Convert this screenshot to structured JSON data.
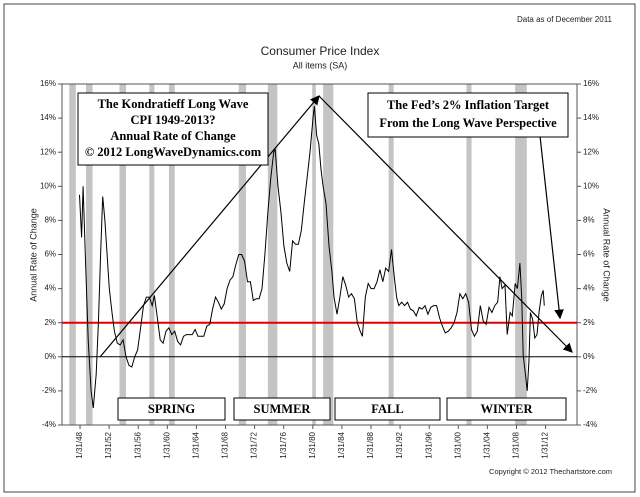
{
  "chart_data": {
    "type": "line",
    "title": "Consumer Price Index",
    "subtitle": "All items (SA)",
    "note": "Data as of December 2011",
    "copyright": "Copyright © 2012 Thechartstore.com",
    "ylabel": "Annual Rate of Change",
    "y2label": "Annual Rate of Change",
    "color": "#000000",
    "x": [
      1948.0,
      1948.3,
      1948.5,
      1948.8,
      1949.2,
      1949.6,
      1949.9,
      1950.3,
      1950.6,
      1950.9,
      1951.2,
      1951.5,
      1951.8,
      1952.1,
      1952.5,
      1952.8,
      1953.2,
      1953.6,
      1954.0,
      1954.4,
      1954.8,
      1955.2,
      1955.6,
      1956.0,
      1956.4,
      1956.8,
      1957.2,
      1957.6,
      1958.0,
      1958.3,
      1958.7,
      1959.1,
      1959.5,
      1959.9,
      1960.3,
      1960.7,
      1961.1,
      1961.5,
      1961.9,
      1962.3,
      1962.7,
      1963.1,
      1963.5,
      1963.9,
      1964.3,
      1964.7,
      1965.1,
      1965.5,
      1965.9,
      1966.3,
      1966.7,
      1967.1,
      1967.5,
      1967.9,
      1968.3,
      1968.7,
      1969.1,
      1969.5,
      1969.9,
      1970.3,
      1970.7,
      1971.1,
      1971.5,
      1971.9,
      1972.3,
      1972.7,
      1973.1,
      1973.5,
      1973.9,
      1974.3,
      1974.7,
      1974.9,
      1975.3,
      1975.7,
      1976.1,
      1976.5,
      1976.9,
      1977.3,
      1977.7,
      1978.1,
      1978.5,
      1978.9,
      1979.3,
      1979.7,
      1980.1,
      1980.3,
      1980.6,
      1980.9,
      1981.2,
      1981.5,
      1981.9,
      1982.3,
      1982.7,
      1983.0,
      1983.4,
      1983.8,
      1984.2,
      1984.6,
      1985.0,
      1985.4,
      1985.8,
      1986.2,
      1986.6,
      1986.9,
      1987.3,
      1987.7,
      1988.1,
      1988.5,
      1988.9,
      1989.3,
      1989.7,
      1990.1,
      1990.5,
      1990.9,
      1991.2,
      1991.6,
      1991.9,
      1992.3,
      1992.7,
      1993.1,
      1993.5,
      1993.9,
      1994.3,
      1994.7,
      1995.1,
      1995.5,
      1995.9,
      1996.3,
      1996.7,
      1997.1,
      1997.5,
      1997.9,
      1998.3,
      1998.7,
      1999.1,
      1999.5,
      1999.9,
      2000.3,
      2000.7,
      2001.1,
      2001.5,
      2001.9,
      2002.3,
      2002.7,
      2003.1,
      2003.5,
      2003.9,
      2004.3,
      2004.7,
      2005.1,
      2005.5,
      2005.8,
      2006.1,
      2006.5,
      2006.8,
      2007.2,
      2007.5,
      2007.9,
      2008.2,
      2008.55,
      2008.8,
      2009.0,
      2009.3,
      2009.55,
      2009.8,
      2010.0,
      2010.3,
      2010.6,
      2010.9,
      2011.2,
      2011.5,
      2011.75,
      2011.9
    ],
    "values": [
      9.5,
      7,
      10,
      6,
      1,
      -2,
      -3,
      -1,
      2,
      6,
      9.4,
      8,
      6,
      4,
      2.5,
      1.5,
      0.8,
      0.7,
      1,
      0,
      -0.5,
      -0.6,
      0,
      0.4,
      1.7,
      3,
      3.5,
      3.5,
      3,
      3.6,
      2.3,
      1,
      0.8,
      1.5,
      1.7,
      1.3,
      1.5,
      0.9,
      0.7,
      1.2,
      1.3,
      1.3,
      1.3,
      1.6,
      1.2,
      1.2,
      1.2,
      1.8,
      1.9,
      2.8,
      3.5,
      3.2,
      2.8,
      3.1,
      4,
      4.5,
      4.7,
      5.4,
      6,
      6,
      5.6,
      4.4,
      4.4,
      3.3,
      3.4,
      3.4,
      4,
      6,
      8.5,
      10.5,
      12,
      12.2,
      10,
      8.5,
      6.5,
      5.5,
      5,
      6.8,
      6.6,
      6.6,
      7.4,
      9,
      10.5,
      12,
      14,
      14.7,
      13,
      12.5,
      11,
      10,
      9,
      6.5,
      5,
      3.5,
      2.5,
      3.5,
      4.7,
      4.2,
      3.5,
      3.7,
      3.4,
      2,
      1.5,
      1.2,
      3.5,
      4.3,
      4,
      4,
      4.4,
      5.1,
      4.4,
      5.2,
      5,
      6.3,
      5,
      3.5,
      3,
      3.2,
      3,
      3.2,
      2.8,
      2.7,
      2.4,
      2.9,
      2.8,
      3,
      2.5,
      2.9,
      3,
      3,
      2.3,
      1.8,
      1.4,
      1.5,
      1.7,
      2,
      2.6,
      3.7,
      3.4,
      3.7,
      3.2,
      1.6,
      1.2,
      1.5,
      3,
      2.1,
      1.9,
      2.9,
      2.6,
      3,
      3.2,
      4.7,
      4,
      4.2,
      1.3,
      2.6,
      2.4,
      4.3,
      4,
      5.5,
      3.5,
      0.1,
      -1,
      -2,
      -0.2,
      2.6,
      2.2,
      1.1,
      1.3,
      2.7,
      3.6,
      3.9,
      3
    ],
    "recessions": [
      [
        1946.6,
        1947.5
      ],
      [
        1948.9,
        1949.8
      ],
      [
        1953.5,
        1954.4
      ],
      [
        1957.6,
        1958.3
      ],
      [
        1960.3,
        1961.1
      ],
      [
        1969.9,
        1970.9
      ],
      [
        1973.9,
        1975.2
      ],
      [
        1980.0,
        1980.5
      ],
      [
        1981.5,
        1982.9
      ],
      [
        1990.5,
        1991.2
      ],
      [
        2001.2,
        2001.9
      ],
      [
        2007.9,
        2009.5
      ]
    ],
    "reference_line": {
      "value": 2,
      "color": "#e00000"
    },
    "xlim": [
      1945.6,
      2016.4
    ],
    "ylim": [
      -4,
      16
    ],
    "xticks": [
      {
        "value": 1948.08,
        "label": "1/31/48"
      },
      {
        "value": 1952.08,
        "label": "1/31/52"
      },
      {
        "value": 1956.08,
        "label": "1/31/56"
      },
      {
        "value": 1960.08,
        "label": "1/31/60"
      },
      {
        "value": 1964.08,
        "label": "1/31/64"
      },
      {
        "value": 1968.08,
        "label": "1/31/68"
      },
      {
        "value": 1972.08,
        "label": "1/31/72"
      },
      {
        "value": 1976.08,
        "label": "1/31/76"
      },
      {
        "value": 1980.08,
        "label": "1/31/80"
      },
      {
        "value": 1984.08,
        "label": "1/31/84"
      },
      {
        "value": 1988.08,
        "label": "1/31/88"
      },
      {
        "value": 1992.08,
        "label": "1/31/92"
      },
      {
        "value": 1996.08,
        "label": "1/31/96"
      },
      {
        "value": 2000.08,
        "label": "1/31/00"
      },
      {
        "value": 2004.08,
        "label": "1/31/04"
      },
      {
        "value": 2008.08,
        "label": "1/31/08"
      },
      {
        "value": 2012.08,
        "label": "1/31/12"
      }
    ],
    "yticks": [
      {
        "value": -4,
        "label": "-4%"
      },
      {
        "value": -2,
        "label": "-2%"
      },
      {
        "value": 0,
        "label": "0%"
      },
      {
        "value": 2,
        "label": "2%"
      },
      {
        "value": 4,
        "label": "4%"
      },
      {
        "value": 6,
        "label": "6%"
      },
      {
        "value": 8,
        "label": "8%"
      },
      {
        "value": 10,
        "label": "10%"
      },
      {
        "value": 12,
        "label": "12%"
      },
      {
        "value": 14,
        "label": "14%"
      },
      {
        "value": 16,
        "label": "16%"
      }
    ],
    "annotations": {
      "left_box": [
        "The Kondratieff Long Wave",
        "CPI 1949-2013?",
        "Annual Rate of Change",
        "© 2012 LongWaveDynamics.com"
      ],
      "right_box": [
        "The Fed’s 2% Inflation Target",
        "From the Long Wave Perspective"
      ],
      "seasons": [
        "SPRING",
        "SUMMER",
        "FALL",
        "WINTER"
      ]
    }
  }
}
